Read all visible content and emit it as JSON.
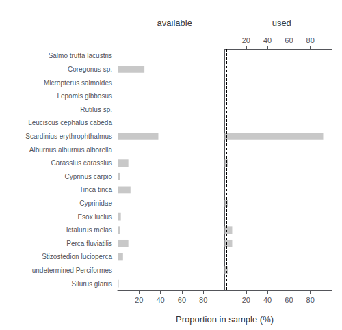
{
  "chart_data": [
    {
      "type": "bar",
      "orientation": "horizontal",
      "title": "available",
      "xlabel": "Proportion in sample (%)",
      "categories": [
        "Salmo trutta lacustris",
        "Coregonus sp.",
        "Micropterus salmoides",
        "Lepomis gibbosus",
        "Rutilus sp.",
        "Leuciscus cephalus cabeda",
        "Scardinius erythrophthalmus",
        "Alburnus alburnus alborella",
        "Carassius carassius",
        "Cyprinus carpio",
        "Tinca tinca",
        "Cyprinidae",
        "Esox lucius",
        "Ictalurus melas",
        "Perca fluviatilis",
        "Stizostedion lucioperca",
        "undetermined Perciformes",
        "Silurus glanis"
      ],
      "values": [
        0,
        25,
        0,
        0,
        0,
        0,
        38,
        0,
        10,
        2,
        12,
        0,
        3,
        2,
        10,
        5,
        0,
        1
      ],
      "color": "#c8c8c8",
      "xlim": [
        0,
        100
      ],
      "xticks": [
        20,
        40,
        60,
        80
      ],
      "grid": false
    },
    {
      "type": "bar",
      "orientation": "horizontal",
      "title": "used",
      "categories": [
        "Salmo trutta lacustris",
        "Coregonus sp.",
        "Micropterus salmoides",
        "Lepomis gibbosus",
        "Rutilus sp.",
        "Leuciscus cephalus cabeda",
        "Scardinius erythrophthalmus",
        "Alburnus alburnus alborella",
        "Carassius carassius",
        "Cyprinus carpio",
        "Tinca tinca",
        "Cyprinidae",
        "Esox lucius",
        "Ictalurus melas",
        "Perca fluviatilis",
        "Stizostedion lucioperca",
        "undetermined Perciformes",
        "Silurus glanis"
      ],
      "values": [
        0,
        0,
        0,
        0,
        0,
        0,
        92,
        0,
        3,
        0,
        0,
        3,
        0,
        7,
        7,
        0,
        3,
        0
      ],
      "color": "#c8c8c8",
      "xlim": [
        0,
        100
      ],
      "xticks": [
        20,
        40,
        60,
        80
      ],
      "x2lim": [
        0,
        100
      ],
      "x2ticks": [
        20,
        40,
        60,
        80
      ],
      "vline": {
        "x": 2,
        "line_style": "dashed"
      },
      "grid": false
    }
  ]
}
